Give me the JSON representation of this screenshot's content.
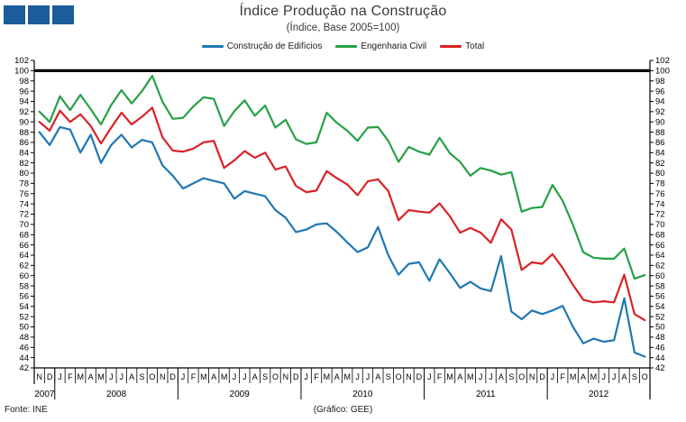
{
  "logo": {
    "color": "#1B5C9B",
    "square_count": 3
  },
  "header": {
    "title": "Índice Produção na Construção",
    "subtitle": "(Índice, Base 2005=100)"
  },
  "legend": [
    {
      "label": "Construção de Edifícios",
      "color": "#1F77B4"
    },
    {
      "label": "Engenharia Civil",
      "color": "#26A145"
    },
    {
      "label": "Total",
      "color": "#D92227"
    }
  ],
  "footer": {
    "source": "Fonte: INE",
    "credit": "(Gráfico: GEE)"
  },
  "chart_data": {
    "type": "line",
    "title": "Índice Produção na Construção",
    "subtitle": "(Índice, Base 2005=100)",
    "ylim": [
      42,
      102
    ],
    "ytick_step": 2,
    "y_axis_sides": "both",
    "grid": false,
    "legend_position": "top",
    "reference_line": {
      "value": 100,
      "color": "#000000"
    },
    "month_labels": [
      "N",
      "D",
      "J",
      "F",
      "M",
      "A",
      "M",
      "J",
      "J",
      "A",
      "S",
      "O",
      "N",
      "D",
      "J",
      "F",
      "M",
      "A",
      "M",
      "J",
      "J",
      "A",
      "S",
      "O",
      "N",
      "D",
      "J",
      "F",
      "M",
      "A",
      "M",
      "J",
      "J",
      "A",
      "S",
      "O",
      "N",
      "D",
      "J",
      "F",
      "M",
      "A",
      "M",
      "J",
      "J",
      "A",
      "S",
      "O",
      "N",
      "D",
      "J",
      "F",
      "M",
      "A",
      "M",
      "J",
      "J",
      "A",
      "S",
      "O"
    ],
    "year_groups": [
      {
        "label": "2007",
        "months": 2
      },
      {
        "label": "2008",
        "months": 12
      },
      {
        "label": "2009",
        "months": 12
      },
      {
        "label": "2010",
        "months": 12
      },
      {
        "label": "2011",
        "months": 12
      },
      {
        "label": "2012",
        "months": 10
      }
    ],
    "series": [
      {
        "name": "Construção de Edifícios",
        "color": "#1F77B4",
        "values": [
          88,
          85.5,
          89,
          88.5,
          84,
          87.5,
          82,
          85.5,
          87.5,
          85,
          86.5,
          86,
          81.5,
          79.5,
          77,
          78,
          79,
          78.5,
          78,
          75,
          76.5,
          76,
          75.5,
          72.8,
          71.3,
          68.5,
          69,
          70,
          70.2,
          68.5,
          66.5,
          64.6,
          65.5,
          69.5,
          64,
          60.2,
          62.3,
          62.6,
          59,
          63.2,
          60.5,
          57.6,
          58.8,
          57.5,
          57,
          63.8,
          53,
          51.5,
          53.2,
          52.5,
          53.2,
          54.1,
          50,
          46.8,
          47.7,
          47.1,
          47.4,
          55.6,
          45,
          44.2
        ]
      },
      {
        "name": "Engenharia Civil",
        "color": "#26A145",
        "values": [
          92,
          90,
          95,
          92.3,
          95.3,
          92.5,
          89.5,
          93.3,
          96.2,
          93.6,
          96,
          99,
          93.9,
          90.6,
          90.8,
          93,
          94.8,
          94.5,
          89.2,
          92.1,
          94.2,
          91.2,
          93.2,
          88.9,
          90.4,
          86.6,
          85.7,
          86,
          91.8,
          89.8,
          88.3,
          86.3,
          88.9,
          89,
          86.3,
          82.2,
          85.1,
          84.2,
          83.6,
          86.9,
          83.9,
          82.2,
          79.5,
          81,
          80.5,
          79.7,
          80.2,
          72.5,
          73.2,
          73.4,
          77.7,
          74.6,
          69.9,
          64.6,
          63.5,
          63.3,
          63.3,
          65.3,
          59.4,
          60.1
        ]
      },
      {
        "name": "Total",
        "color": "#D92227",
        "values": [
          90,
          88.3,
          92.2,
          90,
          91.5,
          89.2,
          85.8,
          88.9,
          91.8,
          89.5,
          91,
          92.8,
          87,
          84.4,
          84.2,
          84.8,
          86,
          86.3,
          81,
          82.5,
          84.3,
          83,
          84,
          80.7,
          81.3,
          77.5,
          76.3,
          76.6,
          80.4,
          79,
          77.8,
          75.7,
          78.4,
          78.8,
          76.5,
          70.8,
          72.8,
          72.5,
          72.3,
          74.1,
          71.6,
          68.4,
          69.3,
          68.4,
          66.4,
          71,
          69,
          61.1,
          62.6,
          62.3,
          64.2,
          61.5,
          58.2,
          55.3,
          54.8,
          55,
          54.8,
          60.2,
          52.5,
          51.3
        ]
      }
    ]
  }
}
